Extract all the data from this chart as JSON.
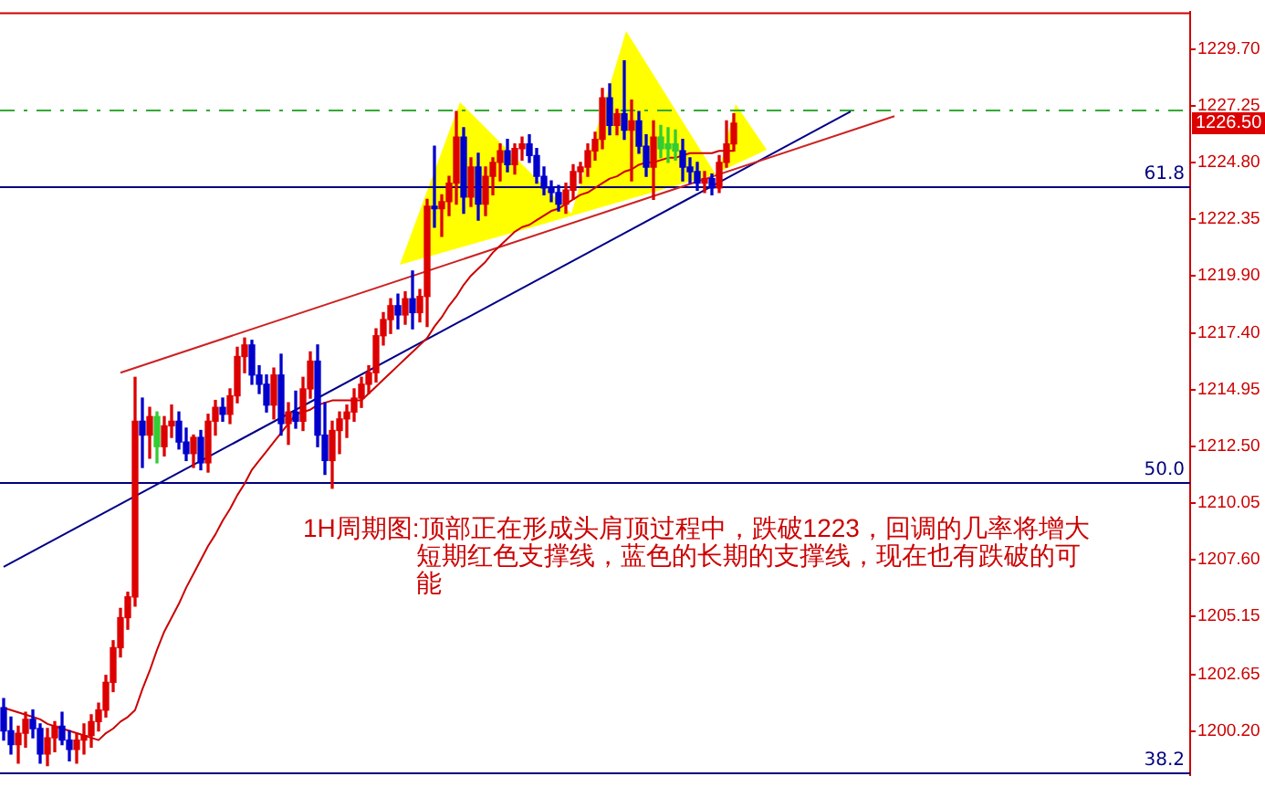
{
  "chart_data": {
    "type": "candlestick",
    "categories": [
      null,
      null,
      null,
      null,
      null,
      null,
      null,
      null,
      null,
      null,
      null,
      null,
      null,
      null,
      null,
      null,
      null,
      null,
      null,
      null,
      null,
      null,
      null,
      null,
      null,
      null,
      null,
      null,
      null,
      null,
      null,
      null,
      null,
      null,
      null,
      null,
      null,
      null,
      null,
      null,
      null,
      null,
      null,
      null,
      null,
      null,
      null,
      null,
      null,
      null,
      null,
      null,
      null,
      null,
      null,
      null,
      null,
      null,
      null,
      null,
      null,
      null,
      null,
      null,
      null,
      null,
      null,
      null,
      null,
      null,
      null,
      null,
      null,
      null,
      null,
      null,
      null,
      null,
      null,
      null,
      null,
      null,
      null,
      null,
      null,
      null,
      null,
      null,
      null,
      null,
      null,
      null,
      null,
      null,
      null,
      null,
      null,
      null,
      null,
      null,
      null,
      null,
      null,
      null,
      null,
      null,
      null,
      null,
      null,
      null,
      null,
      null,
      null,
      null,
      null,
      null,
      null,
      null,
      null,
      null,
      null,
      null,
      null,
      null,
      null,
      null,
      null,
      null,
      null,
      null,
      null,
      null,
      null,
      null,
      null,
      null,
      null,
      null,
      null,
      null,
      null,
      null,
      null,
      null,
      null,
      null,
      null,
      null,
      null,
      null,
      null,
      null,
      null,
      null,
      null,
      null,
      null,
      null,
      null,
      null,
      null,
      null,
      null
    ],
    "ohlc": [
      [
        1201.2,
        1201.6,
        1199.8,
        1200.2
      ],
      [
        1200.2,
        1200.8,
        1199.2,
        1199.6
      ],
      [
        1199.6,
        1200.4,
        1198.8,
        1200.1
      ],
      [
        1200.1,
        1201.0,
        1199.5,
        1200.7
      ],
      [
        1200.7,
        1201.1,
        1199.9,
        1200.3
      ],
      [
        1200.3,
        1200.5,
        1198.8,
        1199.2
      ],
      [
        1199.2,
        1200.3,
        1198.7,
        1199.9
      ],
      [
        1199.9,
        1200.6,
        1199.3,
        1200.4
      ],
      [
        1200.4,
        1201.0,
        1199.6,
        1199.8
      ],
      [
        1199.8,
        1200.2,
        1198.9,
        1199.4
      ],
      [
        1199.4,
        1200.1,
        1198.8,
        1199.8
      ],
      [
        1199.8,
        1200.5,
        1199.2,
        1200.0
      ],
      [
        1200.0,
        1200.9,
        1199.5,
        1200.6
      ],
      [
        1200.6,
        1201.4,
        1200.2,
        1201.1
      ],
      [
        1201.1,
        1202.6,
        1200.8,
        1202.3
      ],
      [
        1202.3,
        1204.1,
        1201.9,
        1203.8
      ],
      [
        1203.8,
        1205.5,
        1203.4,
        1205.1
      ],
      [
        1205.1,
        1206.2,
        1204.6,
        1206.0
      ],
      [
        1206.0,
        1215.5,
        1205.6,
        1213.6
      ],
      [
        1213.6,
        1214.6,
        1211.6,
        1213.0
      ],
      [
        1213.0,
        1214.2,
        1212.0,
        1213.8
      ],
      [
        1213.8,
        1214.0,
        1211.8,
        1212.5
      ],
      [
        1212.5,
        1213.8,
        1212.1,
        1213.4
      ],
      [
        1213.4,
        1214.3,
        1212.9,
        1213.6
      ],
      [
        1213.6,
        1214.0,
        1212.4,
        1212.7
      ],
      [
        1212.7,
        1213.3,
        1211.9,
        1212.2
      ],
      [
        1212.2,
        1213.0,
        1211.6,
        1212.9
      ],
      [
        1212.9,
        1213.2,
        1211.5,
        1211.8
      ],
      [
        1211.8,
        1213.9,
        1211.4,
        1213.6
      ],
      [
        1213.6,
        1214.5,
        1213.0,
        1214.2
      ],
      [
        1214.2,
        1214.6,
        1213.6,
        1213.9
      ],
      [
        1213.9,
        1215.0,
        1213.5,
        1214.7
      ],
      [
        1214.7,
        1216.8,
        1214.4,
        1216.4
      ],
      [
        1216.4,
        1217.2,
        1215.7,
        1216.9
      ],
      [
        1216.9,
        1217.1,
        1215.2,
        1215.6
      ],
      [
        1215.6,
        1216.0,
        1214.8,
        1215.2
      ],
      [
        1215.2,
        1215.6,
        1214.0,
        1214.3
      ],
      [
        1214.3,
        1215.9,
        1213.7,
        1215.6
      ],
      [
        1215.6,
        1216.5,
        1213.0,
        1213.5
      ],
      [
        1213.5,
        1214.4,
        1212.6,
        1214.0
      ],
      [
        1214.0,
        1214.9,
        1213.3,
        1213.6
      ],
      [
        1213.6,
        1215.5,
        1213.2,
        1215.0
      ],
      [
        1215.0,
        1216.6,
        1214.6,
        1216.2
      ],
      [
        1216.2,
        1216.9,
        1212.5,
        1213.0
      ],
      [
        1213.0,
        1214.4,
        1211.3,
        1211.9
      ],
      [
        1211.9,
        1213.6,
        1210.7,
        1213.2
      ],
      [
        1213.2,
        1214.0,
        1212.2,
        1213.7
      ],
      [
        1213.7,
        1214.3,
        1212.9,
        1214.0
      ],
      [
        1214.0,
        1215.0,
        1213.6,
        1214.6
      ],
      [
        1214.6,
        1215.5,
        1214.2,
        1215.2
      ],
      [
        1215.2,
        1216.0,
        1214.8,
        1215.7
      ],
      [
        1215.7,
        1217.6,
        1215.3,
        1217.3
      ],
      [
        1217.3,
        1218.3,
        1216.9,
        1218.0
      ],
      [
        1218.0,
        1218.9,
        1217.4,
        1218.6
      ],
      [
        1218.6,
        1219.1,
        1217.6,
        1218.2
      ],
      [
        1218.2,
        1219.2,
        1217.8,
        1218.9
      ],
      [
        1218.9,
        1220.1,
        1217.6,
        1218.3
      ],
      [
        1218.3,
        1219.3,
        1217.9,
        1219.0
      ],
      [
        1219.0,
        1223.2,
        1217.7,
        1222.9
      ],
      [
        1222.9,
        1225.5,
        1222.0,
        1222.8
      ],
      [
        1222.8,
        1223.4,
        1221.6,
        1223.1
      ],
      [
        1223.1,
        1224.2,
        1222.5,
        1223.9
      ],
      [
        1223.9,
        1227.0,
        1223.0,
        1225.9
      ],
      [
        1225.9,
        1226.3,
        1222.6,
        1223.3
      ],
      [
        1223.3,
        1225.0,
        1222.9,
        1224.6
      ],
      [
        1224.6,
        1225.2,
        1222.3,
        1223.0
      ],
      [
        1223.0,
        1224.6,
        1222.5,
        1224.2
      ],
      [
        1224.2,
        1225.0,
        1223.4,
        1224.8
      ],
      [
        1224.8,
        1225.6,
        1224.0,
        1225.3
      ],
      [
        1225.3,
        1225.8,
        1224.4,
        1224.7
      ],
      [
        1224.7,
        1225.6,
        1224.3,
        1225.4
      ],
      [
        1225.4,
        1225.9,
        1224.9,
        1225.6
      ],
      [
        1225.6,
        1226.0,
        1224.8,
        1225.1
      ],
      [
        1225.1,
        1225.4,
        1223.9,
        1224.2
      ],
      [
        1224.2,
        1224.6,
        1223.4,
        1223.7
      ],
      [
        1223.7,
        1224.0,
        1223.1,
        1223.5
      ],
      [
        1223.5,
        1223.8,
        1222.7,
        1223.0
      ],
      [
        1223.0,
        1223.9,
        1222.6,
        1223.6
      ],
      [
        1223.6,
        1224.7,
        1223.2,
        1224.4
      ],
      [
        1224.4,
        1224.8,
        1223.9,
        1224.6
      ],
      [
        1224.6,
        1225.6,
        1224.2,
        1225.3
      ],
      [
        1225.3,
        1226.1,
        1224.9,
        1225.8
      ],
      [
        1225.8,
        1228.0,
        1225.4,
        1227.6
      ],
      [
        1227.6,
        1228.2,
        1226.0,
        1226.4
      ],
      [
        1226.4,
        1227.1,
        1226.0,
        1226.9
      ],
      [
        1226.9,
        1229.2,
        1225.8,
        1226.2
      ],
      [
        1226.2,
        1227.5,
        1224.0,
        1226.6
      ],
      [
        1226.6,
        1227.0,
        1225.2,
        1225.5
      ],
      [
        1225.5,
        1226.0,
        1224.2,
        1224.6
      ],
      [
        1224.6,
        1226.6,
        1223.2,
        1225.9
      ],
      [
        1225.9,
        1226.4,
        1225.0,
        1225.4
      ],
      [
        1225.4,
        1226.3,
        1224.8,
        1225.6
      ],
      [
        1225.6,
        1226.2,
        1224.9,
        1225.3
      ],
      [
        1225.3,
        1225.8,
        1224.0,
        1224.6
      ],
      [
        1224.6,
        1225.0,
        1223.9,
        1224.4
      ],
      [
        1224.4,
        1224.8,
        1223.6,
        1223.9
      ],
      [
        1223.9,
        1224.4,
        1223.5,
        1224.1
      ],
      [
        1224.1,
        1224.3,
        1223.4,
        1223.7
      ],
      [
        1223.7,
        1225.1,
        1223.5,
        1224.8
      ],
      [
        1224.8,
        1226.6,
        1224.6,
        1225.6
      ],
      [
        1225.6,
        1226.9,
        1225.3,
        1226.5
      ],
      null,
      null,
      null,
      null,
      null,
      null,
      null,
      null,
      null,
      null,
      null,
      null,
      null,
      null,
      null,
      null,
      null,
      null,
      null,
      null,
      null,
      null,
      null,
      null,
      null,
      null,
      null,
      null,
      null,
      null,
      null,
      null,
      null,
      null,
      null,
      null,
      null,
      null,
      null,
      null,
      null,
      null,
      null,
      null,
      null,
      null,
      null,
      null,
      null,
      null,
      null,
      null,
      null,
      null,
      null,
      null,
      null,
      null,
      null,
      null,
      null,
      null
    ],
    "colors": [
      "#0000cc",
      "#0000cc",
      "#dd0000",
      "#dd0000",
      "#0000cc",
      "#0000cc",
      "#dd0000",
      "#dd0000",
      "#0000cc",
      "#0000cc",
      "#dd0000",
      "#dd0000",
      "#dd0000",
      "#dd0000",
      "#dd0000",
      "#dd0000",
      "#dd0000",
      "#dd0000",
      "#dd0000",
      "#0000cc",
      "#dd0000",
      "#33cc33",
      "#dd0000",
      "#dd0000",
      "#0000cc",
      "#0000cc",
      "#dd0000",
      "#0000cc",
      "#dd0000",
      "#dd0000",
      "#0000cc",
      "#dd0000",
      "#dd0000",
      "#dd0000",
      "#0000cc",
      "#0000cc",
      "#0000cc",
      "#dd0000",
      "#0000cc",
      "#dd0000",
      "#0000cc",
      "#dd0000",
      "#dd0000",
      "#0000cc",
      "#0000cc",
      "#dd0000",
      "#dd0000",
      "#dd0000",
      "#dd0000",
      "#dd0000",
      "#dd0000",
      "#dd0000",
      "#dd0000",
      "#dd0000",
      "#0000cc",
      "#dd0000",
      "#0000cc",
      "#dd0000",
      "#dd0000",
      "#0000cc",
      "#dd0000",
      "#dd0000",
      "#dd0000",
      "#0000cc",
      "#dd0000",
      "#0000cc",
      "#dd0000",
      "#dd0000",
      "#dd0000",
      "#0000cc",
      "#dd0000",
      "#dd0000",
      "#0000cc",
      "#0000cc",
      "#0000cc",
      "#0000cc",
      "#0000cc",
      "#dd0000",
      "#dd0000",
      "#dd0000",
      "#dd0000",
      "#dd0000",
      "#dd0000",
      "#0000cc",
      "#dd0000",
      "#0000cc",
      "#dd0000",
      "#0000cc",
      "#0000cc",
      "#dd0000",
      "#33cc33",
      "#33cc33",
      "#33cc33",
      "#0000cc",
      "#0000cc",
      "#0000cc",
      "#dd0000",
      "#0000cc",
      "#dd0000",
      "#dd0000",
      "#dd0000",
      null,
      null,
      null,
      null,
      null,
      null,
      null,
      null,
      null,
      null,
      null,
      null,
      null,
      null,
      null,
      null,
      null,
      null,
      null,
      null,
      null,
      null,
      null,
      null,
      null,
      null,
      null,
      null,
      null,
      null,
      null,
      null,
      null,
      null,
      null,
      null,
      null,
      null,
      null,
      null,
      null,
      null,
      null,
      null,
      null,
      null,
      null,
      null,
      null,
      null,
      null,
      null,
      null,
      null,
      null,
      null,
      null,
      null,
      null,
      null,
      null,
      null
    ],
    "series": [
      {
        "type": "line",
        "color": "#cc0000",
        "values": [
          1201.2,
          1201.1,
          1201.0,
          1200.9,
          1200.8,
          1200.7,
          1200.5,
          1200.4,
          1200.3,
          1200.2,
          1200.1,
          1200.0,
          1199.9,
          1199.8,
          1200.1,
          1200.3,
          1200.6,
          1200.8,
          1201.1,
          1202.0,
          1202.8,
          1203.7,
          1204.5,
          1205.1,
          1205.7,
          1206.4,
          1207.0,
          1207.6,
          1208.2,
          1208.7,
          1209.3,
          1209.8,
          1210.4,
          1210.9,
          1211.5,
          1211.9,
          1212.3,
          1212.7,
          1213.1,
          1213.5,
          1213.9,
          1214.0,
          1214.1,
          1214.3,
          1214.4,
          1214.5,
          1214.5,
          1214.5,
          1214.5,
          1214.5,
          1214.8,
          1215.1,
          1215.4,
          1215.7,
          1216.0,
          1216.3,
          1216.6,
          1216.9,
          1217.2,
          1217.7,
          1218.1,
          1218.6,
          1219.0,
          1219.5,
          1219.9,
          1220.2,
          1220.5,
          1220.9,
          1221.2,
          1221.5,
          1221.8,
          1222.0,
          1222.1,
          1222.3,
          1222.5,
          1222.7,
          1222.8,
          1223.0,
          1223.2,
          1223.4,
          1223.5,
          1223.7,
          1223.9,
          1224.1,
          1224.2,
          1224.4,
          1224.5,
          1224.7,
          1224.8,
          1224.8,
          1224.9,
          1225.0,
          1225.0,
          1225.1,
          1225.2,
          1225.2,
          1225.2,
          1225.2,
          1225.3,
          1225.3,
          1225.3,
          null,
          null,
          null,
          null,
          null,
          null,
          null,
          null,
          null,
          null,
          null,
          null,
          null,
          null,
          null,
          null,
          null,
          null,
          null,
          null,
          null,
          null,
          null,
          null,
          null,
          null,
          null,
          null,
          null,
          null,
          null,
          null,
          null,
          null,
          null,
          null,
          null,
          null,
          null,
          null,
          null,
          null,
          null,
          null,
          null,
          null,
          null,
          null,
          null,
          null,
          null,
          null,
          null,
          null,
          null,
          null,
          null,
          null,
          null,
          null,
          null,
          null
        ]
      },
      {
        "type": "line",
        "color": "#cc2222",
        "values": [
          null,
          null,
          null,
          null,
          null,
          null,
          null,
          null,
          null,
          null,
          null,
          null,
          null,
          null,
          null,
          null,
          1215.7,
          null,
          null,
          null,
          null,
          null,
          null,
          null,
          null,
          null,
          null,
          null,
          null,
          null,
          null,
          null,
          null,
          null,
          null,
          null,
          null,
          null,
          null,
          null,
          null,
          null,
          null,
          null,
          null,
          null,
          null,
          null,
          null,
          null,
          null,
          null,
          null,
          null,
          null,
          null,
          null,
          null,
          null,
          null,
          null,
          null,
          null,
          null,
          null,
          null,
          null,
          null,
          null,
          null,
          null,
          null,
          null,
          null,
          null,
          null,
          null,
          null,
          null,
          null,
          null,
          null,
          null,
          null,
          null,
          null,
          null,
          null,
          null,
          null,
          null,
          null,
          null,
          null,
          null,
          null,
          null,
          null,
          null,
          null,
          null,
          null,
          null,
          null,
          null,
          null,
          null,
          null,
          null,
          null,
          null,
          null,
          null,
          null,
          null,
          null,
          null,
          null,
          null,
          null,
          null,
          null,
          1226.8,
          null,
          null,
          null,
          null,
          null,
          null,
          null,
          null,
          null,
          null,
          null,
          null,
          null,
          null,
          null,
          null,
          null,
          null,
          null,
          null,
          null,
          null,
          null,
          null,
          null,
          null,
          null,
          null,
          null,
          null,
          null,
          null,
          null,
          null,
          null,
          null,
          null,
          null,
          null,
          null
        ]
      },
      {
        "type": "line",
        "color": "#000088",
        "values": [
          1207.3,
          null,
          null,
          null,
          null,
          null,
          null,
          null,
          null,
          null,
          null,
          null,
          null,
          null,
          null,
          null,
          null,
          null,
          null,
          null,
          null,
          null,
          null,
          null,
          null,
          null,
          null,
          null,
          null,
          null,
          null,
          null,
          null,
          null,
          null,
          null,
          null,
          null,
          null,
          null,
          null,
          null,
          null,
          null,
          null,
          null,
          null,
          null,
          null,
          null,
          null,
          null,
          null,
          null,
          null,
          null,
          null,
          null,
          null,
          null,
          null,
          null,
          null,
          null,
          null,
          null,
          null,
          null,
          null,
          null,
          null,
          null,
          null,
          null,
          null,
          null,
          null,
          null,
          null,
          null,
          null,
          null,
          null,
          null,
          null,
          null,
          null,
          null,
          null,
          null,
          null,
          null,
          null,
          null,
          null,
          null,
          null,
          null,
          null,
          null,
          null,
          null,
          null,
          null,
          null,
          null,
          null,
          null,
          null,
          null,
          null,
          null,
          null,
          null,
          null,
          null,
          1227.0,
          null,
          null,
          null,
          null,
          null,
          null,
          null,
          null,
          null,
          null,
          null,
          null,
          null,
          null,
          null,
          null,
          null,
          null,
          null,
          null,
          null,
          null,
          null,
          null,
          null,
          null,
          null,
          null,
          null,
          null,
          null,
          null,
          null,
          null,
          null,
          null,
          null,
          null,
          null,
          null,
          null,
          null,
          null,
          null,
          null,
          null
        ]
      }
    ],
    "ylim": [
      1198.3,
      1231.3
    ],
    "yticks": [
      {
        "value": 1229.7,
        "label": "1229.70"
      },
      1227.25,
      {
        "value": 1224.8,
        "label": "1224.80"
      },
      1222.35,
      {
        "value": 1219.9,
        "label": "1219.90"
      },
      {
        "value": 1217.4,
        "label": "1217.40"
      },
      1214.95,
      {
        "value": 1212.5,
        "label": "1212.50"
      },
      1210.05,
      {
        "value": 1207.6,
        "label": "1207.60"
      },
      1205.15,
      {
        "value": 1202.65,
        "label": "1202.65"
      },
      {
        "value": 1200.2,
        "label": "1200.20"
      }
    ],
    "tick_labels": "y",
    "ref_lines": [
      {
        "axis": "y",
        "value": 1223.8,
        "color": "#000080"
      },
      {
        "axis": "y",
        "value": 1211.0,
        "color": "#000080"
      },
      {
        "axis": "y",
        "value": 1198.4,
        "color": "#000080"
      },
      {
        "axis": "y",
        "value": 1227.1,
        "color": "#33aa33",
        "line_style": "dashed"
      }
    ],
    "annotations": [
      "1H周期图:顶部正在形成头肩顶过程中，跌破1223，回调的几率将增大短期红色支撑线，蓝色的长期的支撑线，现在也有跌破的可能",
      "1226.50",
      {
        "text": "61.8",
        "y": 1223.8
      },
      {
        "text": "50.0",
        "y": 1211.0
      },
      {
        "text": "38.2",
        "y": 1198.4
      }
    ]
  }
}
